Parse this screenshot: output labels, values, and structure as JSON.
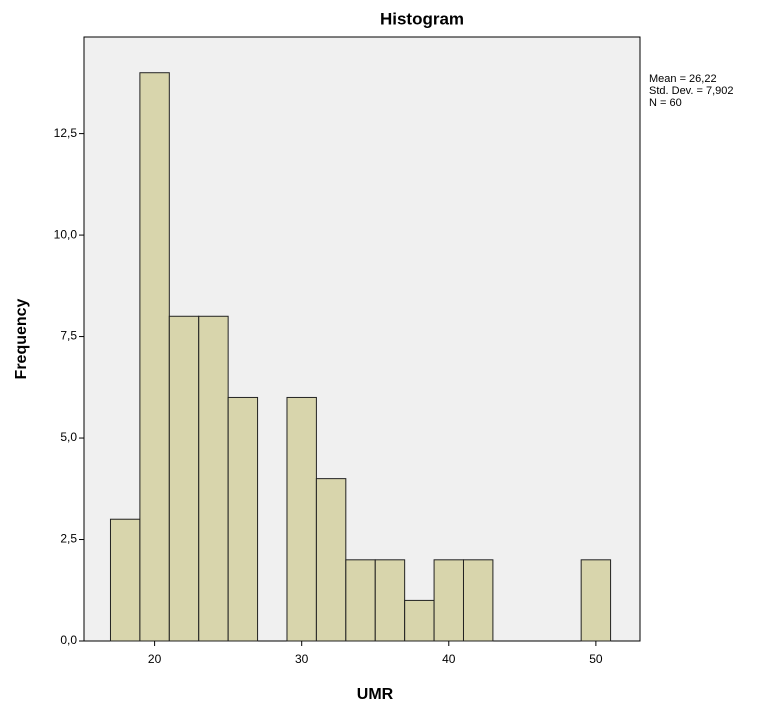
{
  "chart_data": {
    "type": "histogram",
    "title": "Histogram",
    "xlabel": "UMR",
    "ylabel": "Frequency",
    "bins": [
      17,
      19,
      21,
      23,
      25,
      27,
      29,
      31,
      33,
      35,
      37,
      39,
      41,
      43,
      45,
      47,
      49,
      51
    ],
    "values": [
      3,
      14,
      8,
      8,
      6,
      0,
      6,
      4,
      2,
      2,
      1,
      2,
      2,
      0,
      0,
      0,
      2
    ],
    "color": "#d4d0a0",
    "xlim": [
      15.2,
      53
    ],
    "xticks": [
      20,
      30,
      40,
      50
    ],
    "ylim": [
      0,
      14.88
    ],
    "yticks": [
      {
        "value": 0,
        "label": "0,0"
      },
      {
        "value": 2.5,
        "label": "2,5"
      },
      {
        "value": 5,
        "label": "5,0"
      },
      {
        "value": 7.5,
        "label": "7,5"
      },
      {
        "value": 10,
        "label": "10,0"
      },
      {
        "value": 12.5,
        "label": "12,5"
      }
    ],
    "annotations": [
      "Mean = 26,22",
      "Std. Dev. = 7,902",
      "N = 60"
    ]
  }
}
